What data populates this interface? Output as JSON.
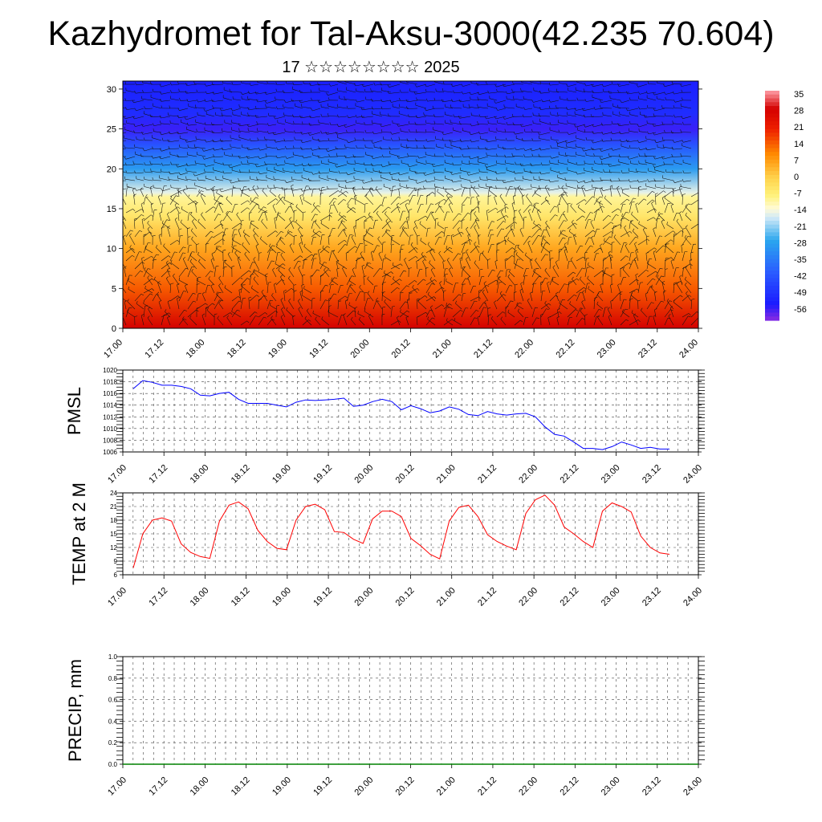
{
  "header": {
    "title": "Kazhydromet for Tal-Aksu-3000(42.235 70.604)",
    "subtitle": "17 ☆☆☆☆☆☆☆☆ 2025"
  },
  "chart_data": [
    {
      "type": "heatmap",
      "name": "vertical-cross-section",
      "x_ticks": [
        "17.00",
        "17.12",
        "18.00",
        "18.12",
        "19.00",
        "19.12",
        "20.00",
        "20.12",
        "21.00",
        "21.12",
        "22.00",
        "22.12",
        "23.00",
        "23.12",
        "24.00"
      ],
      "y_ticks": [
        0,
        5,
        10,
        15,
        20,
        25,
        30
      ],
      "ylim": [
        0,
        31
      ],
      "colorbar_labels": [
        "35",
        "28",
        "21",
        "14",
        "7",
        "0",
        "-7",
        "-14",
        "-21",
        "-28",
        "-35",
        "-42",
        "-49",
        "-56"
      ],
      "colorbar_range": [
        -63,
        38
      ],
      "colors": {
        "hot": "#d40000",
        "orange": "#ff8a00",
        "yellow": "#fff27a",
        "light_blue": "#cfe9f7",
        "cyan": "#2aa6ee",
        "blue": "#1a1aff",
        "purple": "#8a2be2"
      },
      "temperature_profile_by_height": [
        {
          "h": 0,
          "t": 30
        },
        {
          "h": 5,
          "t": 15
        },
        {
          "h": 10,
          "t": 6
        },
        {
          "h": 14,
          "t": -5
        },
        {
          "h": 16.5,
          "t": -10
        },
        {
          "h": 17,
          "t": -16
        },
        {
          "h": 20,
          "t": -30
        },
        {
          "h": 23,
          "t": -44
        },
        {
          "h": 25,
          "t": -58
        },
        {
          "h": 27,
          "t": -52
        },
        {
          "h": 31,
          "t": -55
        }
      ],
      "overlay": "wind barbs"
    },
    {
      "type": "line",
      "name": "pmsl",
      "ylabel": "PMSL",
      "ylim": [
        1006,
        1020
      ],
      "y_ticks": [
        1006,
        1008,
        1010,
        1012,
        1014,
        1016,
        1018,
        1020
      ],
      "x_ticks": [
        "17.00",
        "17.12",
        "18.00",
        "18.12",
        "19.00",
        "19.12",
        "20.00",
        "20.12",
        "21.00",
        "21.12",
        "22.00",
        "22.12",
        "23.00",
        "23.12",
        "24.00"
      ],
      "color": "#0000ff",
      "series": [
        {
          "values": [
            1016.8,
            1018.2,
            1017.9,
            1017.4,
            1017.4,
            1017.2,
            1016.8,
            1015.7,
            1015.6,
            1016.0,
            1016.2,
            1015.0,
            1014.3,
            1014.3,
            1014.3,
            1014.0,
            1013.7,
            1014.5,
            1014.9,
            1014.8,
            1014.9,
            1015.0,
            1015.2,
            1013.8,
            1014.0,
            1014.6,
            1015.0,
            1014.6,
            1013.2,
            1013.9,
            1013.4,
            1012.7,
            1013.0,
            1013.7,
            1013.3,
            1012.4,
            1012.2,
            1012.9,
            1012.5,
            1012.3,
            1012.5,
            1012.6,
            1012.0,
            1010.3,
            1009.0,
            1008.7,
            1007.7,
            1006.6,
            1006.6,
            1006.4,
            1006.9,
            1007.7,
            1007.2,
            1006.6,
            1006.8,
            1006.5,
            1006.5
          ]
        }
      ]
    },
    {
      "type": "line",
      "name": "temp-2m",
      "ylabel": "TEMP at 2 M",
      "ylim": [
        6,
        24
      ],
      "y_ticks": [
        6,
        9,
        12,
        15,
        18,
        21,
        24
      ],
      "x_ticks": [
        "17.00",
        "17.12",
        "18.00",
        "18.12",
        "19.00",
        "19.12",
        "20.00",
        "20.12",
        "21.00",
        "21.12",
        "22.00",
        "22.12",
        "23.00",
        "23.12",
        "24.00"
      ],
      "color": "#ff0000",
      "series": [
        {
          "values": [
            7.5,
            15.0,
            18.0,
            18.5,
            17.8,
            12.8,
            10.9,
            10.0,
            9.6,
            17.8,
            21.3,
            22.0,
            20.5,
            15.8,
            13.3,
            11.8,
            11.5,
            18.0,
            21.0,
            21.5,
            20.3,
            15.5,
            15.3,
            13.8,
            12.9,
            18.3,
            20.0,
            20.0,
            18.8,
            14.0,
            12.4,
            10.5,
            9.5,
            17.8,
            20.8,
            21.3,
            18.8,
            14.8,
            13.3,
            12.3,
            11.5,
            19.5,
            22.5,
            23.5,
            21.3,
            16.5,
            15.0,
            13.3,
            12.0,
            20.0,
            21.8,
            21.0,
            19.8,
            14.5,
            12.0,
            10.8,
            10.5
          ]
        }
      ]
    },
    {
      "type": "line",
      "name": "precip",
      "ylabel": "PRECIP, mm",
      "ylim": [
        0,
        1
      ],
      "y_ticks": [
        "0.0",
        "0.2",
        "0.4",
        "0.6",
        "0.8",
        "1.0"
      ],
      "x_ticks": [
        "17.00",
        "17.12",
        "18.00",
        "18.12",
        "19.00",
        "19.12",
        "20.00",
        "20.12",
        "21.00",
        "21.12",
        "22.00",
        "22.12",
        "23.00",
        "23.12",
        "24.00"
      ],
      "color": "#008000",
      "series": [
        {
          "values": [
            0,
            0,
            0,
            0,
            0,
            0,
            0,
            0,
            0,
            0,
            0,
            0,
            0,
            0,
            0,
            0,
            0,
            0,
            0,
            0,
            0,
            0,
            0,
            0,
            0,
            0,
            0,
            0,
            0,
            0,
            0,
            0,
            0,
            0,
            0,
            0,
            0,
            0,
            0,
            0,
            0,
            0,
            0,
            0,
            0,
            0,
            0,
            0,
            0,
            0,
            0,
            0,
            0,
            0,
            0,
            0,
            0
          ]
        }
      ]
    }
  ]
}
